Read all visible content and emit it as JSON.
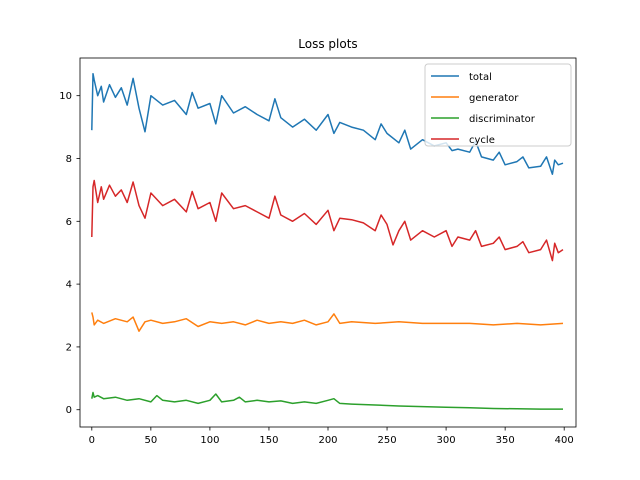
{
  "chart_data": {
    "type": "line",
    "title": "Loss plots",
    "xlabel": "",
    "ylabel": "",
    "xlim": [
      -10,
      410
    ],
    "ylim": [
      -0.55,
      11.2
    ],
    "x_ticks": [
      0,
      50,
      100,
      150,
      200,
      250,
      300,
      350,
      400
    ],
    "y_ticks": [
      0,
      2,
      4,
      6,
      8,
      10
    ],
    "grid": false,
    "legend_position": "top-right",
    "series": [
      {
        "name": "total",
        "color": "#1f77b4",
        "points": [
          [
            0,
            8.9
          ],
          [
            1,
            10.7
          ],
          [
            2,
            10.5
          ],
          [
            5,
            10.0
          ],
          [
            8,
            10.3
          ],
          [
            10,
            9.8
          ],
          [
            15,
            10.35
          ],
          [
            20,
            9.95
          ],
          [
            25,
            10.25
          ],
          [
            30,
            9.7
          ],
          [
            35,
            10.55
          ],
          [
            40,
            9.6
          ],
          [
            45,
            8.85
          ],
          [
            50,
            10.0
          ],
          [
            60,
            9.7
          ],
          [
            70,
            9.85
          ],
          [
            80,
            9.4
          ],
          [
            85,
            10.1
          ],
          [
            90,
            9.6
          ],
          [
            100,
            9.75
          ],
          [
            105,
            9.1
          ],
          [
            110,
            10.0
          ],
          [
            120,
            9.45
          ],
          [
            130,
            9.65
          ],
          [
            140,
            9.4
          ],
          [
            150,
            9.2
          ],
          [
            155,
            9.9
          ],
          [
            160,
            9.3
          ],
          [
            170,
            9.0
          ],
          [
            180,
            9.25
          ],
          [
            190,
            8.9
          ],
          [
            200,
            9.4
          ],
          [
            205,
            8.8
          ],
          [
            210,
            9.15
          ],
          [
            220,
            9.0
          ],
          [
            230,
            8.9
          ],
          [
            240,
            8.6
          ],
          [
            245,
            9.1
          ],
          [
            250,
            8.8
          ],
          [
            260,
            8.5
          ],
          [
            265,
            8.9
          ],
          [
            270,
            8.3
          ],
          [
            280,
            8.6
          ],
          [
            290,
            8.4
          ],
          [
            300,
            8.5
          ],
          [
            305,
            8.25
          ],
          [
            310,
            8.3
          ],
          [
            320,
            8.2
          ],
          [
            325,
            8.55
          ],
          [
            330,
            8.05
          ],
          [
            340,
            7.95
          ],
          [
            345,
            8.2
          ],
          [
            350,
            7.8
          ],
          [
            360,
            7.9
          ],
          [
            365,
            8.05
          ],
          [
            370,
            7.7
          ],
          [
            380,
            7.75
          ],
          [
            385,
            8.05
          ],
          [
            390,
            7.5
          ],
          [
            392,
            7.95
          ],
          [
            395,
            7.8
          ],
          [
            399,
            7.85
          ]
        ]
      },
      {
        "name": "generator",
        "color": "#ff7f0e",
        "points": [
          [
            0,
            3.1
          ],
          [
            1,
            2.95
          ],
          [
            2,
            2.7
          ],
          [
            5,
            2.85
          ],
          [
            10,
            2.75
          ],
          [
            20,
            2.9
          ],
          [
            30,
            2.8
          ],
          [
            35,
            2.95
          ],
          [
            40,
            2.5
          ],
          [
            45,
            2.8
          ],
          [
            50,
            2.85
          ],
          [
            60,
            2.75
          ],
          [
            70,
            2.8
          ],
          [
            80,
            2.9
          ],
          [
            90,
            2.65
          ],
          [
            100,
            2.8
          ],
          [
            110,
            2.75
          ],
          [
            120,
            2.8
          ],
          [
            130,
            2.7
          ],
          [
            140,
            2.85
          ],
          [
            150,
            2.75
          ],
          [
            160,
            2.8
          ],
          [
            170,
            2.75
          ],
          [
            180,
            2.85
          ],
          [
            190,
            2.7
          ],
          [
            200,
            2.8
          ],
          [
            205,
            3.05
          ],
          [
            210,
            2.75
          ],
          [
            220,
            2.8
          ],
          [
            240,
            2.75
          ],
          [
            260,
            2.8
          ],
          [
            280,
            2.75
          ],
          [
            300,
            2.75
          ],
          [
            320,
            2.75
          ],
          [
            340,
            2.7
          ],
          [
            360,
            2.75
          ],
          [
            380,
            2.7
          ],
          [
            399,
            2.75
          ]
        ]
      },
      {
        "name": "discriminator",
        "color": "#2ca02c",
        "points": [
          [
            0,
            0.35
          ],
          [
            1,
            0.55
          ],
          [
            2,
            0.4
          ],
          [
            5,
            0.45
          ],
          [
            10,
            0.35
          ],
          [
            20,
            0.4
          ],
          [
            30,
            0.3
          ],
          [
            40,
            0.35
          ],
          [
            50,
            0.25
          ],
          [
            55,
            0.45
          ],
          [
            60,
            0.3
          ],
          [
            70,
            0.25
          ],
          [
            80,
            0.3
          ],
          [
            90,
            0.2
          ],
          [
            100,
            0.3
          ],
          [
            105,
            0.5
          ],
          [
            110,
            0.25
          ],
          [
            120,
            0.3
          ],
          [
            125,
            0.4
          ],
          [
            130,
            0.25
          ],
          [
            140,
            0.3
          ],
          [
            150,
            0.25
          ],
          [
            160,
            0.28
          ],
          [
            170,
            0.2
          ],
          [
            180,
            0.25
          ],
          [
            190,
            0.2
          ],
          [
            200,
            0.3
          ],
          [
            205,
            0.35
          ],
          [
            210,
            0.2
          ],
          [
            220,
            0.18
          ],
          [
            240,
            0.15
          ],
          [
            260,
            0.12
          ],
          [
            280,
            0.1
          ],
          [
            300,
            0.08
          ],
          [
            320,
            0.06
          ],
          [
            340,
            0.04
          ],
          [
            360,
            0.03
          ],
          [
            380,
            0.02
          ],
          [
            399,
            0.02
          ]
        ]
      },
      {
        "name": "cycle",
        "color": "#d62728",
        "points": [
          [
            0,
            5.5
          ],
          [
            1,
            7.1
          ],
          [
            2,
            7.3
          ],
          [
            5,
            6.6
          ],
          [
            8,
            7.1
          ],
          [
            10,
            6.7
          ],
          [
            15,
            7.15
          ],
          [
            20,
            6.8
          ],
          [
            25,
            7.0
          ],
          [
            30,
            6.6
          ],
          [
            35,
            7.25
          ],
          [
            40,
            6.5
          ],
          [
            45,
            6.1
          ],
          [
            50,
            6.9
          ],
          [
            60,
            6.5
          ],
          [
            70,
            6.7
          ],
          [
            80,
            6.3
          ],
          [
            85,
            6.95
          ],
          [
            90,
            6.4
          ],
          [
            100,
            6.6
          ],
          [
            105,
            6.0
          ],
          [
            110,
            6.9
          ],
          [
            120,
            6.4
          ],
          [
            130,
            6.5
          ],
          [
            140,
            6.3
          ],
          [
            150,
            6.1
          ],
          [
            155,
            6.8
          ],
          [
            160,
            6.2
          ],
          [
            170,
            6.0
          ],
          [
            180,
            6.25
          ],
          [
            190,
            5.9
          ],
          [
            200,
            6.35
          ],
          [
            205,
            5.7
          ],
          [
            210,
            6.1
          ],
          [
            220,
            6.05
          ],
          [
            230,
            5.95
          ],
          [
            240,
            5.7
          ],
          [
            245,
            6.2
          ],
          [
            250,
            5.9
          ],
          [
            255,
            5.25
          ],
          [
            260,
            5.7
          ],
          [
            265,
            6.0
          ],
          [
            270,
            5.4
          ],
          [
            280,
            5.7
          ],
          [
            290,
            5.5
          ],
          [
            300,
            5.7
          ],
          [
            305,
            5.2
          ],
          [
            310,
            5.5
          ],
          [
            320,
            5.4
          ],
          [
            325,
            5.7
          ],
          [
            330,
            5.2
          ],
          [
            340,
            5.3
          ],
          [
            345,
            5.5
          ],
          [
            350,
            5.1
          ],
          [
            360,
            5.2
          ],
          [
            365,
            5.35
          ],
          [
            370,
            5.0
          ],
          [
            380,
            5.1
          ],
          [
            385,
            5.4
          ],
          [
            390,
            4.75
          ],
          [
            392,
            5.3
          ],
          [
            395,
            5.0
          ],
          [
            399,
            5.1
          ]
        ]
      }
    ]
  }
}
